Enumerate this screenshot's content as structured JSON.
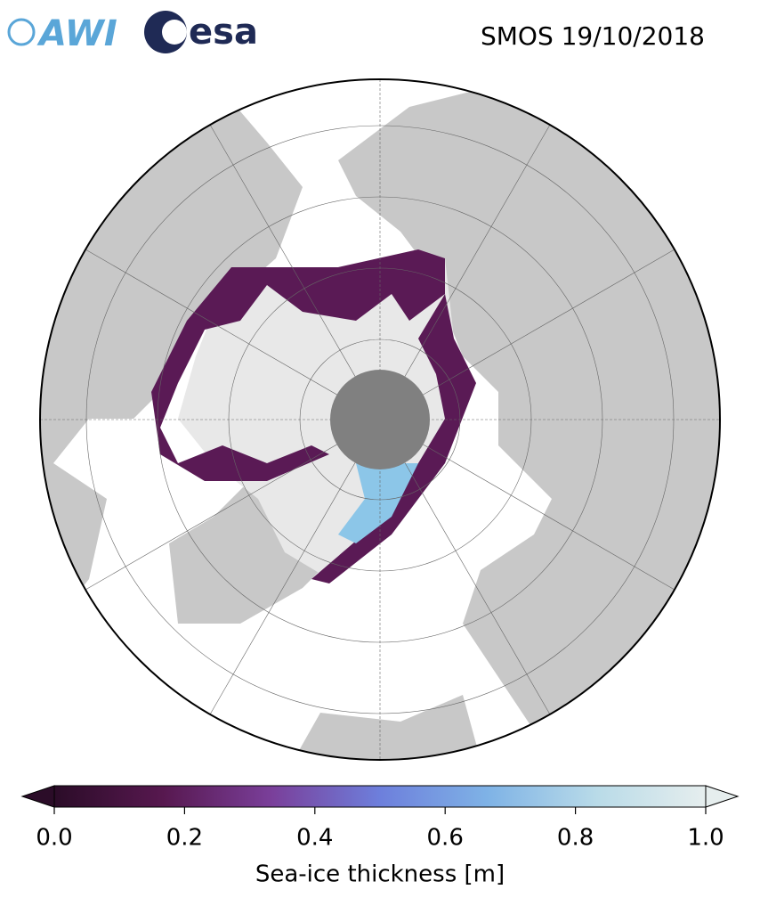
{
  "header": {
    "logos": [
      "AWI",
      "esa"
    ],
    "title": "SMOS 19/10/2018"
  },
  "colorbar": {
    "label": "Sea-ice thickness [m]",
    "lim": [
      0,
      1
    ],
    "ticks": [
      {
        "value": 0,
        "label": "0.0"
      },
      {
        "value": 0.2,
        "label": "0.2"
      },
      {
        "value": 0.4,
        "label": "0.4"
      },
      {
        "value": 0.6,
        "label": "0.6"
      },
      {
        "value": 0.8,
        "label": "0.8"
      },
      {
        "value": 1,
        "label": "1.0"
      }
    ],
    "colors": [
      "#2b0c28",
      "#57184f",
      "#7a3f9a",
      "#6d7fdc",
      "#7fb3e6",
      "#b9dbe8",
      "#e6eeee"
    ]
  }
}
